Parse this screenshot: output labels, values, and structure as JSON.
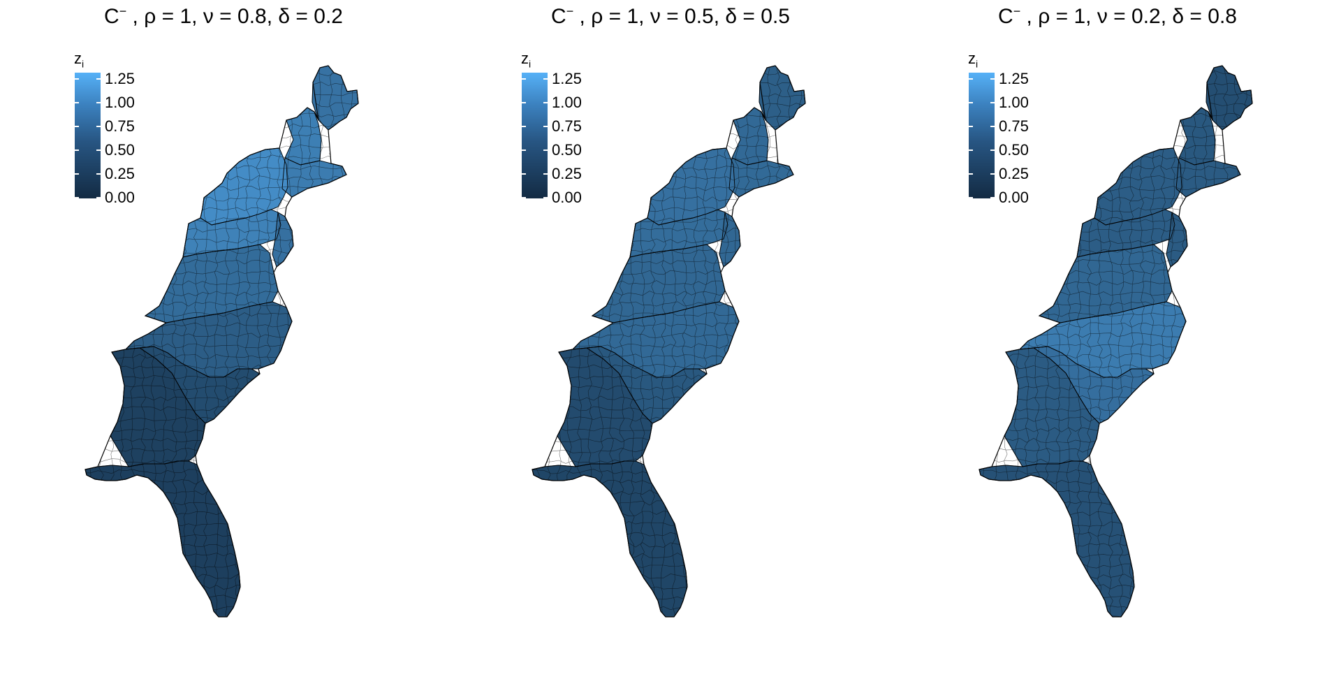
{
  "chart_data": [
    {
      "type": "heatmap",
      "subtype": "choropleth",
      "title_base": "C",
      "title_sup": "−",
      "title_rest": " , ρ = 1, ν = 0.8, δ = 0.2",
      "legend": {
        "title": "z",
        "title_sub": "i",
        "ticks": [
          "1.25",
          "1.00",
          "0.75",
          "0.50",
          "0.25",
          "0.00"
        ],
        "range": [
          0,
          1.35
        ]
      },
      "region_values": [
        {
          "region": "Maine",
          "value": 0.72
        },
        {
          "region": "New Hampshire / Vermont",
          "value": 0.85
        },
        {
          "region": "Massachusetts / Connecticut",
          "value": 0.82
        },
        {
          "region": "New York",
          "value": 0.98
        },
        {
          "region": "Pennsylvania",
          "value": 0.88
        },
        {
          "region": "New Jersey / Delaware / Maryland",
          "value": 0.7
        },
        {
          "region": "West Virginia / Virginia",
          "value": 0.65
        },
        {
          "region": "North Carolina",
          "value": 0.5
        },
        {
          "region": "South Carolina",
          "value": 0.33
        },
        {
          "region": "Georgia",
          "value": 0.22
        },
        {
          "region": "Florida",
          "value": 0.2
        }
      ]
    },
    {
      "type": "heatmap",
      "subtype": "choropleth",
      "title_base": "C",
      "title_sup": "−",
      "title_rest": " , ρ = 1, ν = 0.5, δ = 0.5",
      "legend": {
        "title": "z",
        "title_sub": "i",
        "ticks": [
          "1.25",
          "1.00",
          "0.75",
          "0.50",
          "0.25",
          "0.00"
        ],
        "range": [
          0,
          1.35
        ]
      },
      "region_values": [
        {
          "region": "Maine",
          "value": 0.52
        },
        {
          "region": "New Hampshire / Vermont",
          "value": 0.62
        },
        {
          "region": "Massachusetts / Connecticut",
          "value": 0.63
        },
        {
          "region": "New York",
          "value": 0.7
        },
        {
          "region": "Pennsylvania",
          "value": 0.66
        },
        {
          "region": "New Jersey / Delaware / Maryland",
          "value": 0.6
        },
        {
          "region": "West Virginia / Virginia",
          "value": 0.6
        },
        {
          "region": "North Carolina",
          "value": 0.62
        },
        {
          "region": "South Carolina",
          "value": 0.45
        },
        {
          "region": "Georgia",
          "value": 0.32
        },
        {
          "region": "Florida",
          "value": 0.27
        }
      ]
    },
    {
      "type": "heatmap",
      "subtype": "choropleth",
      "title_base": "C",
      "title_sup": "−",
      "title_rest": " , ρ = 1, ν = 0.2, δ = 0.8",
      "legend": {
        "title": "z",
        "title_sub": "i",
        "ticks": [
          "1.25",
          "1.00",
          "0.75",
          "0.50",
          "0.25",
          "0.00"
        ],
        "range": [
          0,
          1.35
        ]
      },
      "region_values": [
        {
          "region": "Maine",
          "value": 0.35
        },
        {
          "region": "New Hampshire / Vermont",
          "value": 0.45
        },
        {
          "region": "Massachusetts / Connecticut",
          "value": 0.48
        },
        {
          "region": "New York",
          "value": 0.5
        },
        {
          "region": "Pennsylvania",
          "value": 0.5
        },
        {
          "region": "New Jersey / Delaware / Maryland",
          "value": 0.48
        },
        {
          "region": "West Virginia / Virginia",
          "value": 0.6
        },
        {
          "region": "North Carolina",
          "value": 0.82
        },
        {
          "region": "South Carolina",
          "value": 0.68
        },
        {
          "region": "Georgia",
          "value": 0.48
        },
        {
          "region": "Florida",
          "value": 0.38
        }
      ]
    }
  ]
}
